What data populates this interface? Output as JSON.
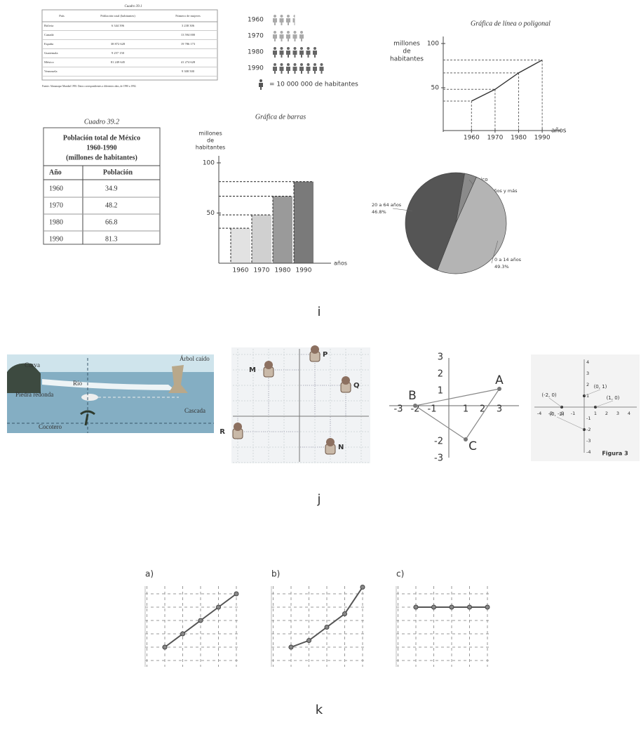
{
  "panel_i": {
    "label": "i",
    "table_39_1": {
      "title": "Cuadro 39.1",
      "headers": [
        "País",
        "Población total (habitantes)",
        "Número de mujeres"
      ],
      "rows": [
        {
          "country": "Bolivia",
          "population": "6 344 396",
          "women": "3 238 306"
        },
        {
          "country": "Canadá",
          "women": "13 594 000"
        },
        {
          "country": "España",
          "population": "38 872 628",
          "women": "19 786 173"
        },
        {
          "country": "Guatemala",
          "population": "9 257 150"
        },
        {
          "country": "México",
          "population": "81 249 645",
          "women": "41 274 628"
        },
        {
          "country": "Venezuela",
          "women": "9 308 500"
        }
      ],
      "source": "Fuente: Almanaque Mundial 1993. Datos correspondientes a diferentes años, de 1990 a 1992."
    },
    "pictogram": {
      "years": [
        "1960",
        "1970",
        "1980",
        "1990"
      ],
      "icons": [
        3.5,
        5,
        7,
        8
      ],
      "legend": "= 10 000 000 de habitantes"
    },
    "line_chart": {
      "title": "Gráfica de línea o poligonal",
      "y_label": [
        "millones",
        "de",
        "habitantes"
      ],
      "x_label": "años",
      "x": [
        1960,
        1970,
        1980,
        1990
      ],
      "values": [
        34.9,
        48.2,
        66.8,
        81.3
      ],
      "xlim": [
        1948,
        1998
      ],
      "ylim": [
        0,
        100
      ],
      "xticks": [
        1960,
        1970,
        1980,
        1990
      ],
      "yticks": [
        50,
        100
      ]
    },
    "table_39_2": {
      "title": "Cuadro 39.2",
      "caption": [
        "Población total de México",
        "1960-1990",
        "(millones de habitantes)"
      ],
      "headers": [
        "Año",
        "Población"
      ],
      "rows": [
        [
          "1960",
          "34.9"
        ],
        [
          "1970",
          "48.2"
        ],
        [
          "1980",
          "66.8"
        ],
        [
          "1990",
          "81.3"
        ]
      ]
    },
    "bar_chart": {
      "title": "Gráfica de barras",
      "y_label": [
        "millones",
        "de",
        "habitantes"
      ],
      "x_label": "años",
      "categories": [
        "1960",
        "1970",
        "1980",
        "1990"
      ],
      "values": [
        34.9,
        48.2,
        66.8,
        81.3
      ],
      "colors": [
        "#e2e2e2",
        "#d0d0d0",
        "#9a9a9a",
        "#7a7a7a"
      ],
      "ylim": [
        0,
        100
      ],
      "yticks": [
        50,
        100
      ]
    },
    "pie_chart": {
      "title": [
        "Población de México",
        "por edades, 1990"
      ],
      "slices": [
        {
          "label": "65 años y más",
          "value": 3.9,
          "value_label": "3.9%",
          "color": "#8a8a8a"
        },
        {
          "label": "0 a 14 años",
          "value": 49.3,
          "value_label": "49.3%",
          "color": "#b4b4b4"
        },
        {
          "label": "20 a 64 años",
          "value": 46.8,
          "value_label": "46.8%",
          "color": "#555555"
        }
      ]
    }
  },
  "panel_j": {
    "label": "j",
    "map": {
      "labels": [
        "Curva",
        "Río",
        "Árbol caído",
        "Piedra redonda",
        "Cascada",
        "Cocotero"
      ]
    },
    "grid": {
      "points": [
        {
          "name": "M",
          "x": -2,
          "y": 3
        },
        {
          "name": "P",
          "x": 1,
          "y": 4
        },
        {
          "name": "Q",
          "x": 3,
          "y": 2
        },
        {
          "name": "R",
          "x": -4,
          "y": -1
        },
        {
          "name": "N",
          "x": 2,
          "y": -2
        }
      ]
    },
    "plane": {
      "xticks": [
        -3,
        -2,
        -1,
        1,
        2,
        3
      ],
      "yticks": [
        3,
        2,
        1,
        -2,
        -3
      ],
      "points": [
        {
          "name": "A",
          "x": 3,
          "y": 1
        },
        {
          "name": "B",
          "x": -2,
          "y": 0
        },
        {
          "name": "C",
          "x": 1,
          "y": -2
        }
      ]
    },
    "figure_3": {
      "caption": "Figura 3",
      "xticks": [
        -4,
        -3,
        -2,
        -1,
        1,
        2,
        3,
        4
      ],
      "yticks": [
        4,
        3,
        2,
        1,
        -1,
        -2,
        -3,
        -4
      ],
      "points": [
        {
          "label": "(-2, 0)",
          "x": -2,
          "y": 0
        },
        {
          "label": "(0, 1)",
          "x": 0,
          "y": 1
        },
        {
          "label": "(1, 0)",
          "x": 1,
          "y": 0
        },
        {
          "label": "(0, -2)",
          "x": 0,
          "y": -2
        }
      ]
    }
  },
  "panel_k": {
    "label": "k",
    "charts": [
      {
        "label": "a)",
        "values": [
          1,
          2,
          3,
          4,
          5
        ]
      },
      {
        "label": "b)",
        "values": [
          1,
          1.5,
          2.5,
          3.5,
          5.5
        ]
      },
      {
        "label": "c)",
        "values": [
          4,
          4,
          4,
          4,
          4
        ]
      }
    ]
  }
}
